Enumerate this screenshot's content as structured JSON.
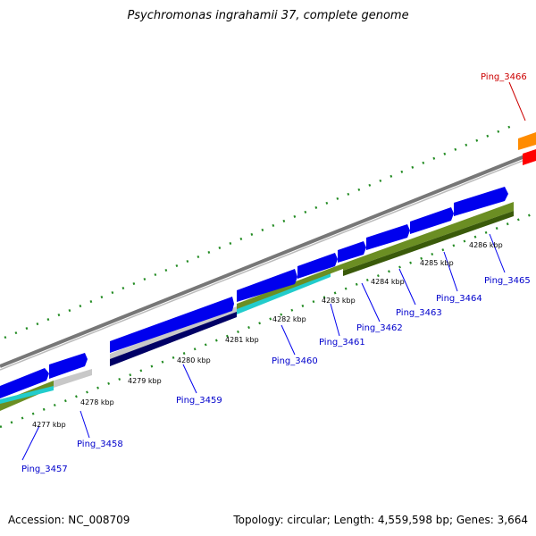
{
  "title": "Psychromonas ingrahamii 37, complete genome",
  "footer": {
    "accession_label": "Accession: NC_008709",
    "summary_label": "Topology: circular; Length: 4,559,598 bp; Genes: 3,664"
  },
  "colors": {
    "backbone": "#8a8a8a",
    "gene_forward": "#0000ee",
    "gene_reverse": "#c8c8c8",
    "gc_bar": "#6b8e23",
    "gc_dark": "#3a5a0a",
    "gc_cyan": "#22cccc",
    "gc_navy": "#000066",
    "tick": "#228b22",
    "label_blue": "#0000cc",
    "label_red": "#cc0000",
    "highlight_orange": "#ff8c00",
    "highlight_red": "#ff0000"
  },
  "ticks": [
    {
      "label": "4277 kbp"
    },
    {
      "label": "4278 kbp"
    },
    {
      "label": "4279 kbp"
    },
    {
      "label": "4280 kbp"
    },
    {
      "label": "4281 kbp"
    },
    {
      "label": "4282 kbp"
    },
    {
      "label": "4283 kbp"
    },
    {
      "label": "4284 kbp"
    },
    {
      "label": "4285 kbp"
    },
    {
      "label": "4286 kbp"
    }
  ],
  "genes": [
    {
      "label": "Ping_3457",
      "color": "blue"
    },
    {
      "label": "Ping_3458",
      "color": "blue"
    },
    {
      "label": "Ping_3459",
      "color": "blue"
    },
    {
      "label": "Ping_3460",
      "color": "blue"
    },
    {
      "label": "Ping_3461",
      "color": "blue"
    },
    {
      "label": "Ping_3462",
      "color": "blue"
    },
    {
      "label": "Ping_3463",
      "color": "blue"
    },
    {
      "label": "Ping_3464",
      "color": "blue"
    },
    {
      "label": "Ping_3465",
      "color": "blue"
    },
    {
      "label": "Ping_3466",
      "color": "red"
    }
  ]
}
